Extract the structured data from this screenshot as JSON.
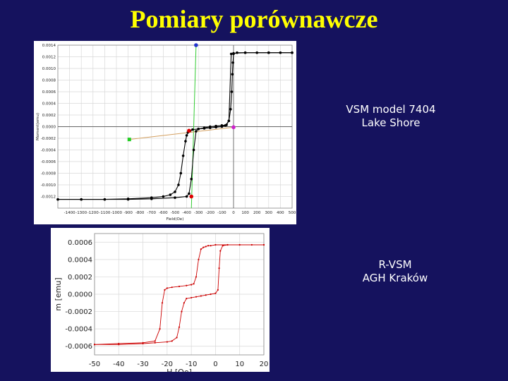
{
  "slide": {
    "title": "Pomiary porównawcze"
  },
  "labels": {
    "vsm_line1": "VSM model 7404",
    "vsm_line2": "Lake Shore",
    "rvsm_line1": "R-VSM",
    "rvsm_line2": "AGH Kraków"
  },
  "colors": {
    "background": "#15125e",
    "title": "#ffff00",
    "label_text": "#ffffff",
    "series1": "#000000",
    "series2": "#cc0000",
    "green_line": "#33cc33",
    "orange_line": "#d4a060"
  },
  "chart_data": [
    {
      "type": "line",
      "title": "",
      "xlabel": "Field(Oe)",
      "ylabel": "Moment(emu)",
      "xlim": [
        -1500,
        500
      ],
      "ylim": [
        -0.0014,
        0.0014
      ],
      "xticks": [
        -1400,
        -1300,
        -1200,
        -1100,
        -1000,
        -900,
        -800,
        -700,
        -600,
        -500,
        -400,
        -300,
        -200,
        -100,
        0,
        100,
        200,
        300,
        400,
        500
      ],
      "yticks": [
        -0.0012,
        -0.001,
        -0.0008,
        -0.0006,
        -0.0004,
        -0.0002,
        0.0,
        0.0002,
        0.0004,
        0.0006,
        0.0008,
        0.001,
        0.0012,
        0.0014
      ],
      "xtick_labels": [
        "-1400",
        "-1300",
        "-1200",
        "-1100",
        "-1000",
        "-900",
        "-800",
        "-700",
        "-600",
        "-500",
        "-400",
        "-300",
        "-200",
        "-100",
        "0",
        "100",
        "200",
        "300",
        "400",
        "500"
      ],
      "ytick_labels": [
        "-0.0012",
        "-0.0010",
        "-0.0008",
        "-0.0006",
        "-0.0004",
        "-0.0002",
        "0.0000",
        "0.0002",
        "0.0004",
        "0.0006",
        "0.0008",
        "0.0010",
        "0.0012",
        "0.0014"
      ],
      "grid": true,
      "series": [
        {
          "name": "",
          "x": [
            -1500,
            -1300,
            -1100,
            -900,
            -700,
            -600,
            -540,
            -500,
            -470,
            -450,
            -430,
            -410,
            -400,
            -390,
            -380,
            -370,
            -350,
            -300,
            -250,
            -200,
            -150,
            -100,
            -70,
            -40,
            -25,
            -15,
            -10,
            -5,
            0,
            30,
            100,
            200,
            300,
            400,
            500
          ],
          "y": [
            -0.00125,
            -0.00125,
            -0.00125,
            -0.00124,
            -0.00122,
            -0.0012,
            -0.00117,
            -0.00112,
            -0.001,
            -0.0008,
            -0.0005,
            -0.00025,
            -0.00015,
            -0.0001,
            -8e-05,
            -7e-05,
            -5e-05,
            -4e-05,
            -3e-05,
            -2e-05,
            -1e-05,
            0.0,
            2e-05,
            0.0001,
            0.0003,
            0.0006,
            0.0009,
            0.0011,
            0.00125,
            0.00127,
            0.00127,
            0.00127,
            0.00127,
            0.00127,
            0.00127
          ]
        },
        {
          "name": "",
          "x": [
            500,
            300,
            100,
            0,
            -20,
            -40,
            -60,
            -100,
            -150,
            -200,
            -250,
            -300,
            -320,
            -340,
            -360,
            -380,
            -400,
            -500,
            -700,
            -900,
            -1100,
            -1300,
            -1500
          ],
          "y": [
            0.00127,
            0.00127,
            0.00127,
            0.00126,
            0.00125,
            0.0001,
            3e-05,
            2e-05,
            1e-05,
            0.0,
            -2e-05,
            -4e-05,
            -8e-05,
            -0.0004,
            -0.0009,
            -0.00115,
            -0.0012,
            -0.00122,
            -0.00124,
            -0.00125,
            -0.00125,
            -0.00125,
            -0.00125
          ]
        }
      ],
      "markers": [
        {
          "x": -360,
          "y": -0.0012
        },
        {
          "x": -380,
          "y": -7e-05
        },
        {
          "x": -320,
          "y": 0.0014
        },
        {
          "x": -890,
          "y": -0.00022
        },
        {
          "x": 0,
          "y": -1e-05
        }
      ]
    },
    {
      "type": "scatter",
      "title": "",
      "xlabel": "H [Oe]",
      "ylabel": "m [emu]",
      "xlim": [
        -50,
        20
      ],
      "ylim": [
        -0.0007,
        0.0007
      ],
      "xticks": [
        -50,
        -40,
        -30,
        -20,
        -10,
        0,
        10,
        20
      ],
      "yticks": [
        -0.0006,
        -0.0004,
        -0.0002,
        0.0,
        0.0002,
        0.0004,
        0.0006
      ],
      "xtick_labels": [
        "-50",
        "-40",
        "-30",
        "-20",
        "-10",
        "0",
        "10",
        "20"
      ],
      "ytick_labels": [
        "-0.0006",
        "-0.0004",
        "-0.0002",
        "0.0000",
        "0.0002",
        "0.0004",
        "0.0006"
      ],
      "grid": true,
      "series": [
        {
          "name": "",
          "x": [
            -50,
            -40,
            -30,
            -25,
            -23,
            -22,
            -21,
            -20,
            -18,
            -15,
            -12,
            -10,
            -9,
            -8,
            -7,
            -6,
            -5,
            -4,
            -3,
            -2,
            0,
            5,
            10,
            15,
            20
          ],
          "y": [
            -0.00058,
            -0.00057,
            -0.00056,
            -0.00054,
            -0.0004,
            -0.0001,
            5e-05,
            7e-05,
            8e-05,
            9e-05,
            0.0001,
            0.00011,
            0.00012,
            0.0002,
            0.0004,
            0.00052,
            0.00054,
            0.00055,
            0.00056,
            0.00056,
            0.00057,
            0.00057,
            0.00057,
            0.00057,
            0.00057
          ]
        },
        {
          "name": "",
          "x": [
            20,
            10,
            5,
            3,
            2,
            1.5,
            1,
            0,
            -2,
            -4,
            -6,
            -8,
            -10,
            -12,
            -13,
            -14,
            -15,
            -16,
            -18,
            -20,
            -25,
            -30,
            -40,
            -50
          ],
          "y": [
            0.00057,
            0.00057,
            0.00057,
            0.00056,
            0.0005,
            0.0003,
            5e-05,
            1e-05,
            0.0,
            -1e-05,
            -2e-05,
            -3e-05,
            -4e-05,
            -5e-05,
            -0.0001,
            -0.0002,
            -0.00038,
            -0.0005,
            -0.00054,
            -0.00055,
            -0.00056,
            -0.00057,
            -0.00058,
            -0.00058
          ]
        }
      ]
    }
  ]
}
